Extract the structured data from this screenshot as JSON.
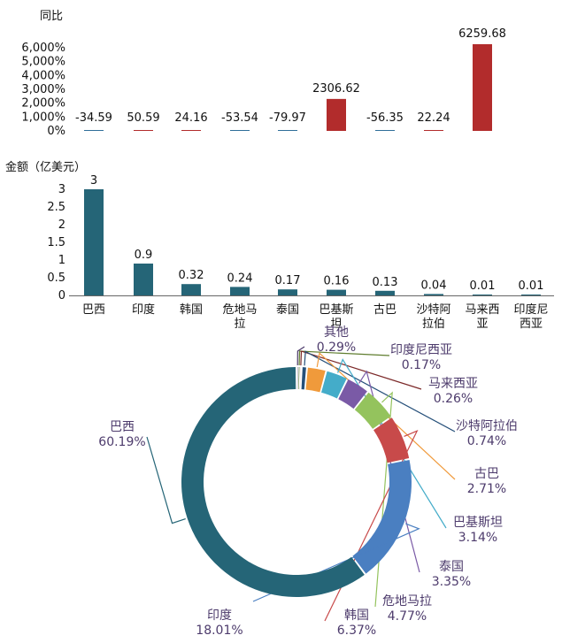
{
  "chart_data": [
    {
      "type": "bar",
      "ylabel": "同比",
      "categories": [
        "巴西",
        "印度",
        "韩国",
        "危地马拉",
        "泰国",
        "巴基斯坦",
        "古巴",
        "沙特阿拉伯",
        "马来西亚",
        "印度尼西亚"
      ],
      "values": [
        -34.59,
        50.59,
        24.16,
        -53.54,
        -79.97,
        2306.62,
        -56.35,
        22.24,
        6259.68,
        null
      ],
      "value_labels": [
        "-34.59",
        "50.59",
        "24.16",
        "-53.54",
        "-79.97",
        "2306.62",
        "-56.35",
        "22.24",
        "6259.68",
        ""
      ],
      "yticks": [
        "0%",
        "1,000%",
        "2,000%",
        "3,000%",
        "4,000%",
        "5,000%",
        "6,000%"
      ],
      "ylim": [
        0,
        6000
      ],
      "colors": {
        "positive": "#b22c2c",
        "negative": "#2f6f99"
      }
    },
    {
      "type": "bar",
      "ylabel": "金额（亿美元）",
      "categories": [
        "巴西",
        "印度",
        "韩国",
        "危地马拉",
        "泰国",
        "巴基斯坦",
        "古巴",
        "沙特阿拉伯",
        "马来西亚",
        "印度尼西亚"
      ],
      "x_tick_labels": [
        "巴西",
        "印度",
        "韩国",
        "危地马\n拉",
        "泰国",
        "巴基斯\n坦",
        "古巴",
        "沙特阿\n拉伯",
        "马来西\n亚",
        "印度尼\n西亚"
      ],
      "values": [
        3,
        0.9,
        0.32,
        0.24,
        0.17,
        0.16,
        0.13,
        0.04,
        0.01,
        0.01
      ],
      "value_labels": [
        "3",
        "0.9",
        "0.32",
        "0.24",
        "0.17",
        "0.16",
        "0.13",
        "0.04",
        "0.01",
        "0.01"
      ],
      "yticks": [
        "0",
        "0.5",
        "1",
        "1.5",
        "2",
        "2.5",
        "3"
      ],
      "ylim": [
        0,
        3
      ],
      "color": "#256577"
    },
    {
      "type": "pie",
      "slices": [
        {
          "label": "其他",
          "value": 0.29,
          "display": "0.29%",
          "color": "#4d3b6c"
        },
        {
          "label": "印度尼西亚",
          "value": 0.17,
          "display": "0.17%",
          "color": "#5f7d2e"
        },
        {
          "label": "马来西亚",
          "value": 0.26,
          "display": "0.26%",
          "color": "#7c2929"
        },
        {
          "label": "沙特阿拉伯",
          "value": 0.74,
          "display": "0.74%",
          "color": "#254f79"
        },
        {
          "label": "古巴",
          "value": 2.71,
          "display": "2.71%",
          "color": "#f09a3b"
        },
        {
          "label": "巴基斯坦",
          "value": 3.14,
          "display": "3.14%",
          "color": "#44acc9"
        },
        {
          "label": "泰国",
          "value": 3.35,
          "display": "3.35%",
          "color": "#7a5aa6"
        },
        {
          "label": "危地马拉",
          "value": 4.77,
          "display": "4.77%",
          "color": "#94c35d"
        },
        {
          "label": "韩国",
          "value": 6.37,
          "display": "6.37%",
          "color": "#c84a4a"
        },
        {
          "label": "印度",
          "value": 18.01,
          "display": "18.01%",
          "color": "#4a7fc1"
        },
        {
          "label": "巴西",
          "value": 60.19,
          "display": "60.19%",
          "color": "#256577"
        }
      ]
    }
  ]
}
